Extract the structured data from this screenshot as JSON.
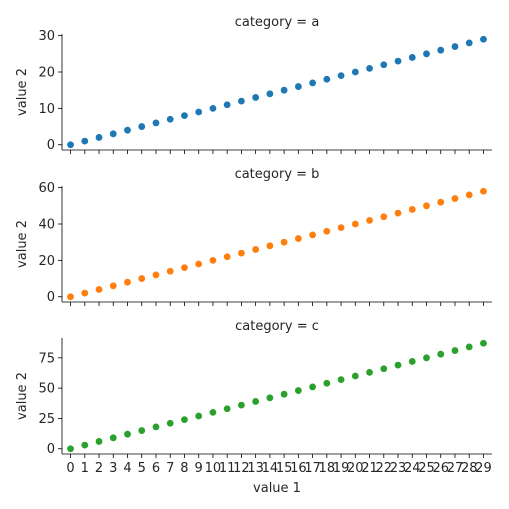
{
  "chart_data": {
    "type": "scatter",
    "xlabel": "value 1",
    "ylabel": "value 2",
    "x": [
      0,
      1,
      2,
      3,
      4,
      5,
      6,
      7,
      8,
      9,
      10,
      11,
      12,
      13,
      14,
      15,
      16,
      17,
      18,
      19,
      20,
      21,
      22,
      23,
      24,
      25,
      26,
      27,
      28,
      29
    ],
    "x_ticks": [
      "0",
      "1",
      "2",
      "3",
      "4",
      "5",
      "6",
      "7",
      "8",
      "9",
      "10",
      "11",
      "12",
      "13",
      "14",
      "15",
      "16",
      "17",
      "18",
      "19",
      "20",
      "21",
      "22",
      "23",
      "24",
      "25",
      "26",
      "27",
      "28",
      "29"
    ],
    "grid": false,
    "sharex": true,
    "panels": [
      {
        "title": "category = a",
        "color": "#1f77b4",
        "ylim": [
          -1.45,
          30.45
        ],
        "yticks": [
          0,
          10,
          20,
          30
        ],
        "values": [
          0,
          1,
          2,
          3,
          4,
          5,
          6,
          7,
          8,
          9,
          10,
          11,
          12,
          13,
          14,
          15,
          16,
          17,
          18,
          19,
          20,
          21,
          22,
          23,
          24,
          25,
          26,
          27,
          28,
          29
        ]
      },
      {
        "title": "category = b",
        "color": "#ff7f0e",
        "ylim": [
          -2.9,
          60.9
        ],
        "yticks": [
          0,
          20,
          40,
          60
        ],
        "values": [
          0,
          2,
          4,
          6,
          8,
          10,
          12,
          14,
          16,
          18,
          20,
          22,
          24,
          26,
          28,
          30,
          32,
          34,
          36,
          38,
          40,
          42,
          44,
          46,
          48,
          50,
          52,
          54,
          56,
          58
        ]
      },
      {
        "title": "category = c",
        "color": "#2ca02c",
        "ylim": [
          -4.35,
          91.35
        ],
        "yticks": [
          0,
          25,
          50,
          75
        ],
        "values": [
          0,
          3,
          6,
          9,
          12,
          15,
          18,
          21,
          24,
          27,
          30,
          33,
          36,
          39,
          42,
          45,
          48,
          51,
          54,
          57,
          60,
          63,
          66,
          69,
          72,
          75,
          78,
          81,
          84,
          87
        ]
      }
    ]
  }
}
